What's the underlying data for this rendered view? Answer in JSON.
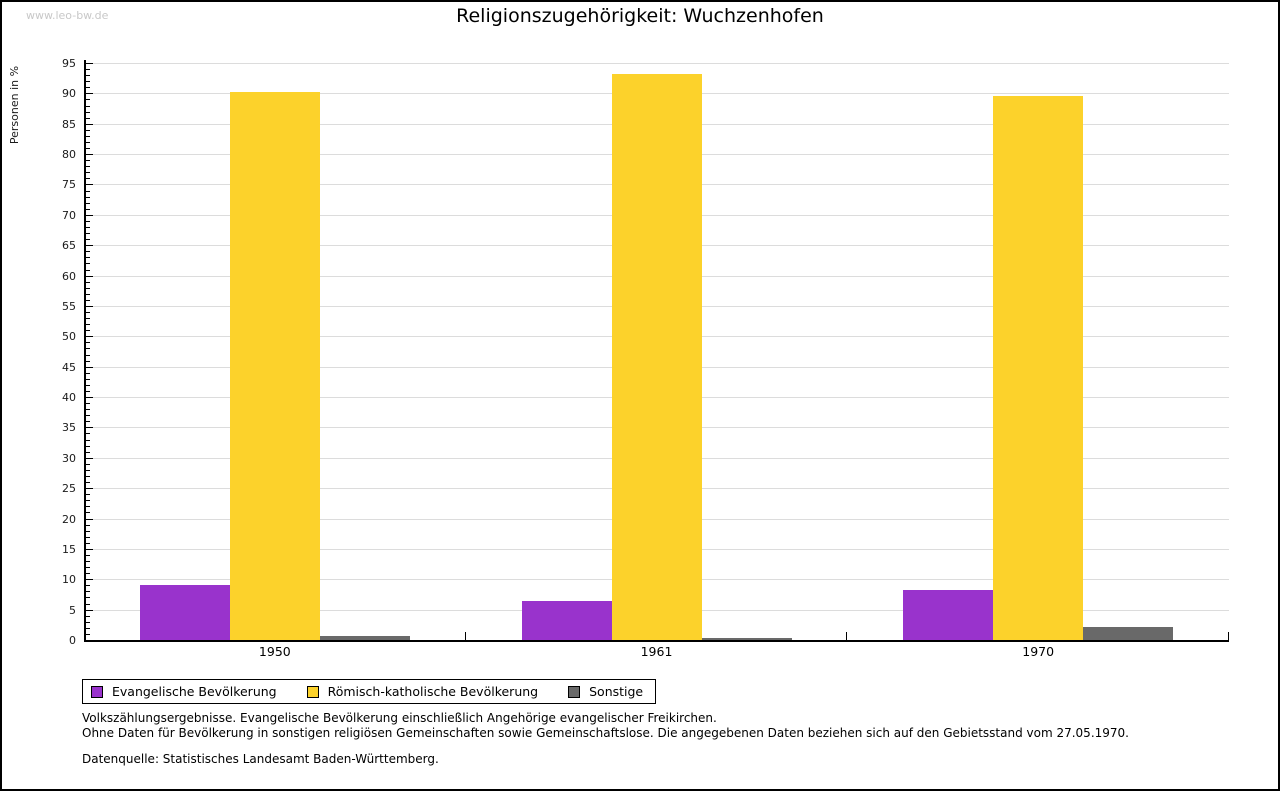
{
  "watermark": "www.leo-bw.de",
  "title": "Religionszugehörigkeit: Wuchzenhofen",
  "chart_data": {
    "type": "bar",
    "title": "Religionszugehörigkeit: Wuchzenhofen",
    "xlabel": "",
    "ylabel": "Personen in %",
    "categories": [
      "1950",
      "1961",
      "1970"
    ],
    "series": [
      {
        "name": "Evangelische Bevölkerung",
        "color": "#9933CC",
        "values": [
          9.0,
          6.5,
          8.3
        ]
      },
      {
        "name": "Römisch-katholische Bevölkerung",
        "color": "#FCD22B",
        "values": [
          90.3,
          93.2,
          89.6
        ]
      },
      {
        "name": "Sonstige",
        "color": "#696969",
        "values": [
          0.7,
          0.3,
          2.1
        ]
      }
    ],
    "ylim": [
      0,
      95
    ],
    "y_major_step": 5,
    "y_minor_step": 1,
    "y_tick_labels": [
      "0",
      "5",
      "10",
      "15",
      "20",
      "25",
      "30",
      "35",
      "40",
      "45",
      "50",
      "55",
      "60",
      "65",
      "70",
      "75",
      "80",
      "85",
      "90",
      "95"
    ],
    "grid": true,
    "legend_position": "bottom-left"
  },
  "colors": {
    "evangelisch": "#9933CC",
    "katholisch": "#FCD22B",
    "sonstige": "#696969",
    "gridline": "#DCDCDC",
    "axis": "#000000",
    "watermark": "#C8C8C8"
  },
  "footnotes": {
    "line1": "Volkszählungsergebnisse. Evangelische Bevölkerung einschließlich Angehörige evangelischer Freikirchen.",
    "line2": "Ohne Daten für Bevölkerung in sonstigen religiösen Gemeinschaften sowie Gemeinschaftslose. Die angegebenen Daten beziehen sich auf den Gebietsstand vom 27.05.1970.",
    "source": "Datenquelle: Statistisches Landesamt Baden-Württemberg."
  }
}
